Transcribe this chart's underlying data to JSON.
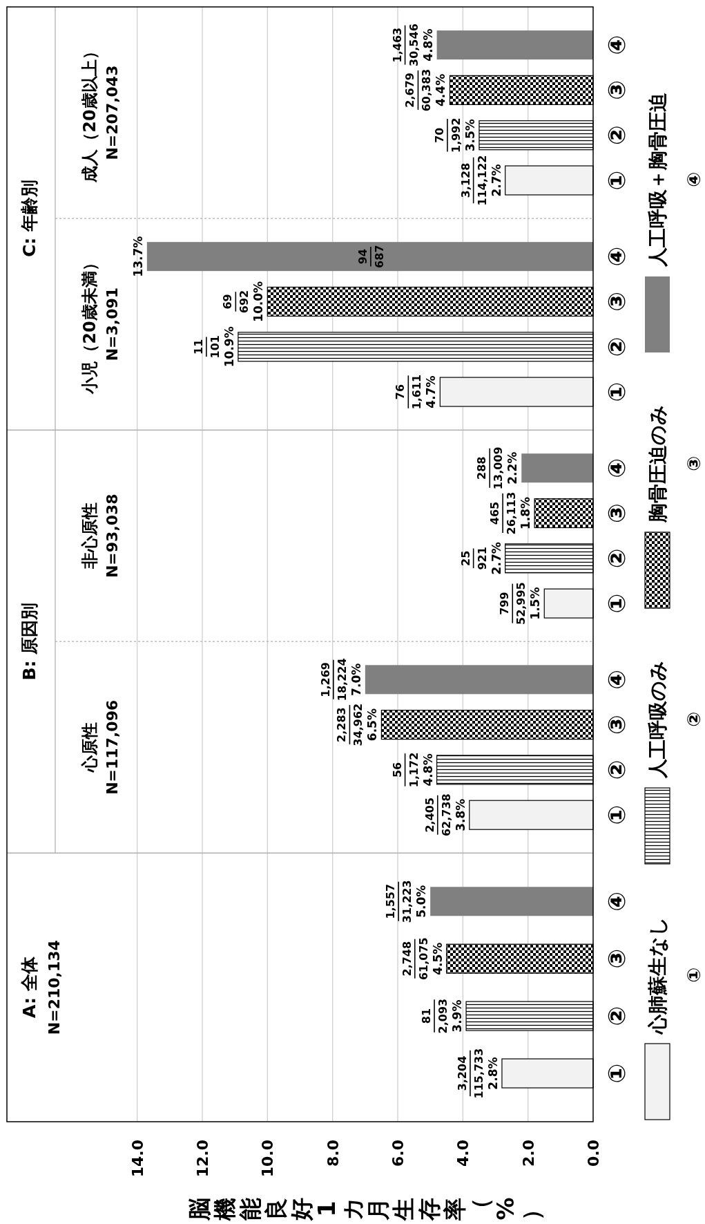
{
  "chart_data": {
    "type": "bar",
    "orientation": "horizontal",
    "xlabel": "脳機能良好1カ月生存率（%）",
    "categories": [
      "④",
      "③",
      "②",
      "①",
      "④",
      "③",
      "②",
      "①",
      "④",
      "③",
      "②",
      "①",
      "④",
      "③",
      "②",
      "①",
      "④",
      "③",
      "②",
      "①"
    ],
    "series": [
      {
        "name": "心肺蘇生なし",
        "color": "#f2f2f2",
        "values": [
          null,
          null,
          null,
          2.7,
          null,
          null,
          null,
          4.7,
          null,
          null,
          null,
          1.5,
          null,
          null,
          null,
          3.8,
          null,
          null,
          null,
          2.8
        ],
        "value_labels": [
          null,
          null,
          null,
          "2.7%",
          null,
          null,
          null,
          "4.7%",
          null,
          null,
          null,
          "1.5%",
          null,
          null,
          null,
          "3.8%",
          null,
          null,
          null,
          "2.8%"
        ]
      },
      {
        "name": "人工呼吸のみ",
        "color": "#000000",
        "values": [
          null,
          null,
          3.5,
          null,
          null,
          null,
          10.9,
          null,
          null,
          null,
          2.7,
          null,
          null,
          null,
          4.8,
          null,
          null,
          null,
          3.9,
          null
        ],
        "value_labels": [
          null,
          null,
          "3.5%",
          null,
          null,
          null,
          "10.9%",
          null,
          null,
          null,
          "2.7%",
          null,
          null,
          null,
          "4.8%",
          null,
          null,
          null,
          "3.9%",
          null
        ]
      },
      {
        "name": "胸骨圧迫のみ",
        "color": "#000000",
        "values": [
          null,
          4.4,
          null,
          null,
          null,
          10.0,
          null,
          null,
          null,
          1.8,
          null,
          null,
          null,
          6.5,
          null,
          null,
          null,
          4.5,
          null,
          null
        ],
        "value_labels": [
          null,
          "4.4%",
          null,
          null,
          null,
          "10.0%",
          null,
          null,
          null,
          "1.8%",
          null,
          null,
          null,
          "6.5%",
          null,
          null,
          null,
          "4.5%",
          null,
          null
        ]
      },
      {
        "name": "人工呼吸＋胸骨圧迫",
        "color": "#808080",
        "values": [
          4.8,
          null,
          null,
          null,
          13.7,
          null,
          null,
          null,
          2.2,
          null,
          null,
          null,
          7.0,
          null,
          null,
          null,
          5.0,
          null,
          null,
          null
        ],
        "value_labels": [
          "4.8%",
          null,
          null,
          null,
          "13.7%",
          null,
          null,
          null,
          "2.2%",
          null,
          null,
          null,
          "7.0%",
          null,
          null,
          null,
          "5.0%",
          null,
          null,
          null
        ]
      }
    ],
    "xlim": [
      18,
      0
    ],
    "xticks": [
      {
        "value": 14,
        "label": "14.0"
      },
      {
        "value": 12,
        "label": "12.0"
      },
      {
        "value": 10,
        "label": "10.0"
      },
      {
        "value": 8,
        "label": "8.0"
      },
      {
        "value": 6,
        "label": "6.0"
      },
      {
        "value": 4,
        "label": "4.0"
      },
      {
        "value": 2,
        "label": "2.0"
      },
      {
        "value": 0,
        "label": "0.0"
      }
    ],
    "grid": "x",
    "legend": "right",
    "annotations": [
      "C: 年齢別",
      "成人（20歳以上）",
      "N=207,043",
      "小児（20歳未満）",
      "N=3,091",
      "B: 原因別",
      "非心原性",
      "N=93,038",
      "心原性",
      "N=117,096",
      "A: 全体",
      "N=210,134",
      "1,463",
      "30,546",
      "2,679",
      "60,383",
      "70",
      "1,992",
      "3,128",
      "114,122",
      "94",
      "687",
      "69",
      "692",
      "11",
      "101",
      "76",
      "1,611",
      "288",
      "13,009",
      "465",
      "26,113",
      "25",
      "921",
      "799",
      "52,995",
      "1,269",
      "18,224",
      "2,283",
      "34,962",
      "56",
      "1,172",
      "2,405",
      "62,738",
      "1,557",
      "31,223",
      "2,748",
      "61,075",
      "81",
      "2,093",
      "3,204",
      "115,733"
    ]
  }
}
